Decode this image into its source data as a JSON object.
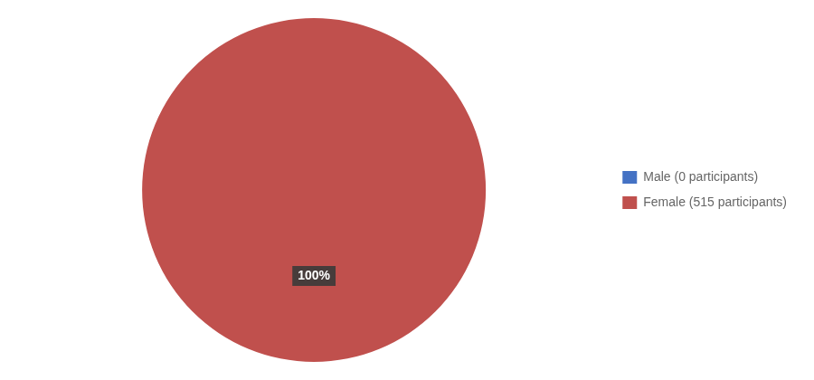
{
  "chart_data": {
    "type": "pie",
    "categories": [
      "Male (0 participants)",
      "Female (515 participants)"
    ],
    "values": [
      1e-06,
      100
    ],
    "value_labels": [
      null,
      "100%"
    ],
    "colors": [
      "#4472C4",
      "#C0504D"
    ],
    "data_labels": true,
    "legend": "right"
  }
}
